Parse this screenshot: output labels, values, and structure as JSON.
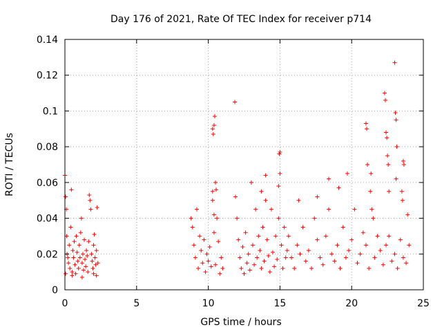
{
  "chart_data": {
    "type": "scatter",
    "title": "Day 176 of 2021, Rate Of TEC Index for receiver p714",
    "xlabel": "GPS time / hours",
    "ylabel": "ROTI / TECUs",
    "xlim": [
      0,
      25
    ],
    "ylim": [
      0,
      0.14
    ],
    "x_ticks": [
      0,
      5,
      10,
      15,
      20,
      25
    ],
    "y_ticks": [
      0,
      0.02,
      0.04,
      0.06,
      0.08,
      0.1,
      0.12,
      0.14
    ],
    "x_tick_labels": [
      "0",
      "5",
      "10",
      "15",
      "20",
      "25"
    ],
    "y_tick_labels": [
      "0",
      "0.02",
      "0.04",
      "0.06",
      "0.08",
      "0.1",
      "0.12",
      "0.14"
    ],
    "grid": true,
    "marker": "+",
    "color": "#ff0000",
    "series": [
      {
        "name": "ROTI",
        "x": [
          0.0,
          0.05,
          0.1,
          0.12,
          0.15,
          0.2,
          0.25,
          0.3,
          0.35,
          0.4,
          0.45,
          0.5,
          0.55,
          0.6,
          0.65,
          0.7,
          0.75,
          0.8,
          0.85,
          0.9,
          0.95,
          1.0,
          1.05,
          1.1,
          1.15,
          1.2,
          1.25,
          1.3,
          1.35,
          1.4,
          1.45,
          1.5,
          1.55,
          1.6,
          1.65,
          1.7,
          1.75,
          1.8,
          1.85,
          1.9,
          1.95,
          2.0,
          2.05,
          2.1,
          2.15,
          2.2,
          2.25,
          2.3,
          0.05,
          0.5,
          1.2,
          2.0,
          2.2,
          8.8,
          8.9,
          9.0,
          9.1,
          9.2,
          9.3,
          9.4,
          9.5,
          9.6,
          9.7,
          9.8,
          9.9,
          10.0,
          10.1,
          10.2,
          10.3,
          10.4,
          10.5,
          10.6,
          10.7,
          10.8,
          10.9,
          11.0,
          10.3,
          10.35,
          10.4,
          10.45,
          10.5,
          10.55,
          10.3,
          10.4,
          11.85,
          11.9,
          12.0,
          12.1,
          12.2,
          12.3,
          12.4,
          12.5,
          12.6,
          12.7,
          12.8,
          12.9,
          13.0,
          13.1,
          13.2,
          13.3,
          13.4,
          13.5,
          13.6,
          13.7,
          13.8,
          13.9,
          14.0,
          14.1,
          14.2,
          14.3,
          14.4,
          14.5,
          14.6,
          14.7,
          14.8,
          14.9,
          15.0,
          15.1,
          15.2,
          15.3,
          15.4,
          15.5,
          14.9,
          15.0,
          14.95,
          14.0,
          13.7,
          15.6,
          15.8,
          16.0,
          16.2,
          16.4,
          16.6,
          16.8,
          17.0,
          17.2,
          17.4,
          17.6,
          17.8,
          18.0,
          18.2,
          18.4,
          18.6,
          18.8,
          19.0,
          19.2,
          19.4,
          19.6,
          19.8,
          20.0,
          20.2,
          20.4,
          20.6,
          20.8,
          21.0,
          21.2,
          21.4,
          21.6,
          21.8,
          22.0,
          22.2,
          22.4,
          22.6,
          22.8,
          23.0,
          23.2,
          23.4,
          23.6,
          23.8,
          24.0,
          16.3,
          17.6,
          18.4,
          19.1,
          19.7,
          21.0,
          21.05,
          21.1,
          21.35,
          22.3,
          22.35,
          22.4,
          22.45,
          22.5,
          22.55,
          22.6,
          23.0,
          23.05,
          23.1,
          23.15,
          23.6,
          23.65,
          23.1,
          23.5,
          23.9,
          23.55,
          21.5,
          21.3
        ],
        "y": [
          0.064,
          0.052,
          0.045,
          0.03,
          0.02,
          0.018,
          0.015,
          0.025,
          0.012,
          0.035,
          0.056,
          0.01,
          0.022,
          0.018,
          0.027,
          0.014,
          0.009,
          0.03,
          0.021,
          0.016,
          0.012,
          0.025,
          0.018,
          0.032,
          0.04,
          0.015,
          0.02,
          0.011,
          0.028,
          0.017,
          0.013,
          0.022,
          0.019,
          0.01,
          0.027,
          0.053,
          0.05,
          0.045,
          0.02,
          0.016,
          0.012,
          0.025,
          0.031,
          0.018,
          0.014,
          0.022,
          0.046,
          0.015,
          0.009,
          0.008,
          0.007,
          0.009,
          0.008,
          0.04,
          0.035,
          0.025,
          0.018,
          0.045,
          0.012,
          0.03,
          0.022,
          0.015,
          0.028,
          0.01,
          0.02,
          0.016,
          0.024,
          0.013,
          0.05,
          0.032,
          0.014,
          0.04,
          0.027,
          0.009,
          0.018,
          0.012,
          0.09,
          0.087,
          0.092,
          0.097,
          0.06,
          0.056,
          0.055,
          0.042,
          0.105,
          0.052,
          0.04,
          0.028,
          0.018,
          0.012,
          0.024,
          0.009,
          0.032,
          0.015,
          0.02,
          0.011,
          0.06,
          0.025,
          0.014,
          0.045,
          0.018,
          0.03,
          0.022,
          0.012,
          0.035,
          0.016,
          0.064,
          0.028,
          0.019,
          0.01,
          0.045,
          0.021,
          0.013,
          0.03,
          0.017,
          0.04,
          0.077,
          0.025,
          0.012,
          0.035,
          0.018,
          0.022,
          0.058,
          0.065,
          0.076,
          0.05,
          0.055,
          0.03,
          0.018,
          0.012,
          0.025,
          0.02,
          0.035,
          0.016,
          0.022,
          0.012,
          0.04,
          0.028,
          0.018,
          0.014,
          0.03,
          0.045,
          0.02,
          0.016,
          0.025,
          0.012,
          0.035,
          0.018,
          0.022,
          0.028,
          0.045,
          0.015,
          0.02,
          0.032,
          0.025,
          0.012,
          0.045,
          0.018,
          0.03,
          0.022,
          0.014,
          0.025,
          0.03,
          0.016,
          0.02,
          0.012,
          0.028,
          0.018,
          0.015,
          0.025,
          0.05,
          0.052,
          0.062,
          0.057,
          0.065,
          0.093,
          0.09,
          0.07,
          0.065,
          0.11,
          0.106,
          0.088,
          0.085,
          0.075,
          0.07,
          0.055,
          0.127,
          0.099,
          0.095,
          0.08,
          0.072,
          0.07,
          0.062,
          0.055,
          0.042,
          0.05,
          0.04,
          0.055
        ]
      }
    ]
  }
}
